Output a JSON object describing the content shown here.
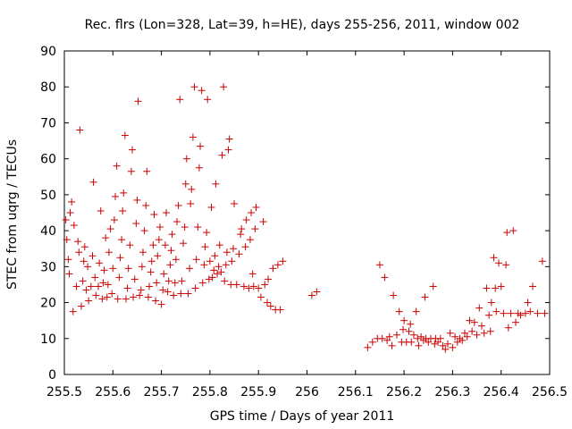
{
  "chart_data": {
    "type": "scatter",
    "title": "Rec. flrs (Lon=328, Lat=39, h=HE), days 255-256, 2011, window 002",
    "xlabel": "GPS time / Days of year 2011",
    "ylabel": "STEC from uqrg / TECUs",
    "xlim": [
      255.5,
      256.5
    ],
    "ylim": [
      0,
      90
    ],
    "x_ticks": [
      "255.5",
      "255.6",
      "255.7",
      "255.8",
      "255.9",
      "256",
      "256.1",
      "256.2",
      "256.3",
      "256.4",
      "256.5"
    ],
    "y_ticks": [
      "0",
      "10",
      "20",
      "30",
      "40",
      "50",
      "60",
      "70",
      "80",
      "90"
    ],
    "marker": "plus",
    "marker_color": "#cc0000",
    "grid": false,
    "series": [
      {
        "points": [
          [
            255.503,
            43.0
          ],
          [
            255.505,
            37.5
          ],
          [
            255.508,
            32.0
          ],
          [
            255.51,
            28.0
          ],
          [
            255.512,
            45.0
          ],
          [
            255.515,
            48.0
          ],
          [
            255.518,
            17.5
          ],
          [
            255.52,
            41.5
          ],
          [
            255.525,
            24.5
          ],
          [
            255.528,
            37.0
          ],
          [
            255.53,
            34.0
          ],
          [
            255.532,
            68.0
          ],
          [
            255.535,
            19.0
          ],
          [
            255.538,
            26.0
          ],
          [
            255.54,
            31.5
          ],
          [
            255.542,
            35.5
          ],
          [
            255.545,
            23.5
          ],
          [
            255.548,
            30.0
          ],
          [
            255.55,
            20.5
          ],
          [
            255.555,
            24.5
          ],
          [
            255.558,
            33.0
          ],
          [
            255.56,
            53.5
          ],
          [
            255.563,
            27.0
          ],
          [
            255.565,
            22.0
          ],
          [
            255.57,
            24.5
          ],
          [
            255.572,
            31.0
          ],
          [
            255.575,
            45.5
          ],
          [
            255.578,
            21.0
          ],
          [
            255.58,
            25.5
          ],
          [
            255.582,
            29.0
          ],
          [
            255.585,
            38.0
          ],
          [
            255.588,
            21.5
          ],
          [
            255.59,
            25.0
          ],
          [
            255.592,
            34.0
          ],
          [
            255.595,
            40.5
          ],
          [
            255.598,
            22.5
          ],
          [
            255.6,
            29.5
          ],
          [
            255.603,
            43.0
          ],
          [
            255.605,
            49.5
          ],
          [
            255.608,
            58.0
          ],
          [
            255.61,
            21.0
          ],
          [
            255.613,
            27.0
          ],
          [
            255.615,
            32.5
          ],
          [
            255.618,
            37.5
          ],
          [
            255.62,
            45.5
          ],
          [
            255.622,
            50.5
          ],
          [
            255.625,
            66.5
          ],
          [
            255.627,
            21.0
          ],
          [
            255.63,
            24.0
          ],
          [
            255.632,
            29.5
          ],
          [
            255.635,
            36.0
          ],
          [
            255.638,
            56.5
          ],
          [
            255.64,
            62.5
          ],
          [
            255.642,
            21.5
          ],
          [
            255.645,
            26.5
          ],
          [
            255.648,
            42.0
          ],
          [
            255.65,
            48.5
          ],
          [
            255.652,
            76.0
          ],
          [
            255.655,
            22.0
          ],
          [
            255.658,
            23.5
          ],
          [
            255.66,
            30.0
          ],
          [
            255.662,
            34.0
          ],
          [
            255.665,
            40.0
          ],
          [
            255.668,
            47.0
          ],
          [
            255.67,
            56.5
          ],
          [
            255.673,
            21.5
          ],
          [
            255.675,
            24.5
          ],
          [
            255.678,
            28.5
          ],
          [
            255.68,
            31.5
          ],
          [
            255.683,
            36.0
          ],
          [
            255.685,
            44.5
          ],
          [
            255.688,
            20.5
          ],
          [
            255.69,
            25.5
          ],
          [
            255.692,
            33.0
          ],
          [
            255.695,
            37.5
          ],
          [
            255.697,
            41.0
          ],
          [
            255.7,
            19.5
          ],
          [
            255.703,
            23.5
          ],
          [
            255.705,
            28.0
          ],
          [
            255.708,
            36.0
          ],
          [
            255.71,
            45.0
          ],
          [
            255.713,
            23.0
          ],
          [
            255.715,
            26.0
          ],
          [
            255.718,
            30.5
          ],
          [
            255.72,
            34.5
          ],
          [
            255.722,
            39.0
          ],
          [
            255.725,
            22.0
          ],
          [
            255.728,
            25.5
          ],
          [
            255.73,
            32.0
          ],
          [
            255.732,
            42.5
          ],
          [
            255.735,
            47.0
          ],
          [
            255.738,
            76.5
          ],
          [
            255.74,
            22.5
          ],
          [
            255.742,
            26.0
          ],
          [
            255.745,
            36.5
          ],
          [
            255.748,
            41.0
          ],
          [
            255.75,
            53.0
          ],
          [
            255.752,
            60.0
          ],
          [
            255.755,
            22.5
          ],
          [
            255.758,
            29.5
          ],
          [
            255.76,
            47.5
          ],
          [
            255.762,
            51.5
          ],
          [
            255.765,
            66.0
          ],
          [
            255.768,
            80.0
          ],
          [
            255.77,
            24.0
          ],
          [
            255.772,
            32.0
          ],
          [
            255.775,
            41.0
          ],
          [
            255.778,
            57.5
          ],
          [
            255.78,
            63.5
          ],
          [
            255.783,
            79.0
          ],
          [
            255.785,
            25.5
          ],
          [
            255.788,
            30.5
          ],
          [
            255.79,
            35.5
          ],
          [
            255.793,
            39.5
          ],
          [
            255.795,
            76.5
          ],
          [
            255.798,
            26.5
          ],
          [
            255.8,
            31.5
          ],
          [
            255.803,
            46.5
          ],
          [
            255.805,
            27.0
          ],
          [
            255.808,
            29.0
          ],
          [
            255.81,
            33.0
          ],
          [
            255.812,
            53.0
          ],
          [
            255.815,
            28.0
          ],
          [
            255.818,
            30.0
          ],
          [
            255.82,
            36.0
          ],
          [
            255.823,
            28.5
          ],
          [
            255.825,
            61.0
          ],
          [
            255.828,
            80.0
          ],
          [
            255.83,
            26.0
          ],
          [
            255.833,
            30.5
          ],
          [
            255.835,
            34.0
          ],
          [
            255.838,
            62.5
          ],
          [
            255.84,
            65.5
          ],
          [
            255.843,
            25.0
          ],
          [
            255.845,
            31.5
          ],
          [
            255.848,
            35.0
          ],
          [
            255.85,
            47.5
          ],
          [
            255.855,
            25.0
          ],
          [
            255.86,
            33.5
          ],
          [
            255.863,
            39.0
          ],
          [
            255.865,
            40.5
          ],
          [
            255.87,
            24.5
          ],
          [
            255.873,
            35.5
          ],
          [
            255.875,
            43.0
          ],
          [
            255.88,
            24.0
          ],
          [
            255.883,
            37.5
          ],
          [
            255.885,
            45.0
          ],
          [
            255.888,
            28.0
          ],
          [
            255.89,
            24.5
          ],
          [
            255.893,
            40.5
          ],
          [
            255.895,
            46.5
          ],
          [
            255.9,
            24.0
          ],
          [
            255.905,
            21.5
          ],
          [
            255.91,
            42.5
          ],
          [
            255.913,
            25.0
          ],
          [
            255.918,
            20.0
          ],
          [
            255.92,
            26.5
          ],
          [
            255.925,
            19.0
          ],
          [
            255.93,
            29.5
          ],
          [
            255.935,
            18.0
          ],
          [
            255.94,
            30.5
          ],
          [
            255.945,
            18.0
          ],
          [
            255.95,
            31.5
          ],
          [
            256.01,
            22.0
          ],
          [
            256.02,
            23.0
          ],
          [
            256.125,
            7.5
          ],
          [
            256.135,
            9.0
          ],
          [
            256.145,
            10.0
          ],
          [
            256.15,
            30.5
          ],
          [
            256.155,
            10.0
          ],
          [
            256.16,
            27.0
          ],
          [
            256.165,
            9.5
          ],
          [
            256.17,
            10.5
          ],
          [
            256.175,
            8.0
          ],
          [
            256.178,
            22.0
          ],
          [
            256.185,
            11.0
          ],
          [
            256.19,
            17.5
          ],
          [
            256.195,
            9.0
          ],
          [
            256.198,
            12.5
          ],
          [
            256.2,
            15.0
          ],
          [
            256.205,
            9.0
          ],
          [
            256.21,
            12.0
          ],
          [
            256.213,
            14.0
          ],
          [
            256.215,
            9.0
          ],
          [
            256.22,
            11.0
          ],
          [
            256.225,
            17.5
          ],
          [
            256.228,
            10.0
          ],
          [
            256.23,
            8.0
          ],
          [
            256.235,
            10.5
          ],
          [
            256.24,
            9.5
          ],
          [
            256.243,
            21.5
          ],
          [
            256.245,
            10.0
          ],
          [
            256.25,
            9.0
          ],
          [
            256.255,
            10.0
          ],
          [
            256.26,
            24.5
          ],
          [
            256.263,
            8.5
          ],
          [
            256.265,
            10.0
          ],
          [
            256.27,
            9.0
          ],
          [
            256.275,
            10.0
          ],
          [
            256.28,
            8.0
          ],
          [
            256.285,
            7.0
          ],
          [
            256.29,
            8.5
          ],
          [
            256.295,
            11.5
          ],
          [
            256.3,
            7.5
          ],
          [
            256.305,
            10.5
          ],
          [
            256.31,
            9.0
          ],
          [
            256.315,
            10.0
          ],
          [
            256.32,
            9.5
          ],
          [
            256.325,
            11.5
          ],
          [
            256.33,
            10.5
          ],
          [
            256.335,
            15.0
          ],
          [
            256.34,
            12.0
          ],
          [
            256.345,
            14.5
          ],
          [
            256.35,
            11.0
          ],
          [
            256.355,
            18.5
          ],
          [
            256.36,
            13.5
          ],
          [
            256.365,
            11.5
          ],
          [
            256.37,
            24.0
          ],
          [
            256.375,
            16.5
          ],
          [
            256.378,
            12.0
          ],
          [
            256.38,
            20.0
          ],
          [
            256.385,
            32.5
          ],
          [
            256.388,
            24.0
          ],
          [
            256.39,
            17.5
          ],
          [
            256.395,
            31.0
          ],
          [
            256.4,
            24.5
          ],
          [
            256.405,
            17.0
          ],
          [
            256.41,
            30.5
          ],
          [
            256.412,
            39.5
          ],
          [
            256.415,
            13.0
          ],
          [
            256.42,
            17.0
          ],
          [
            256.425,
            40.0
          ],
          [
            256.43,
            14.5
          ],
          [
            256.435,
            17.0
          ],
          [
            256.44,
            16.5
          ],
          [
            256.45,
            17.0
          ],
          [
            256.455,
            20.0
          ],
          [
            256.46,
            17.5
          ],
          [
            256.465,
            24.5
          ],
          [
            256.475,
            17.0
          ],
          [
            256.485,
            31.5
          ],
          [
            256.49,
            17.0
          ]
        ]
      }
    ]
  }
}
